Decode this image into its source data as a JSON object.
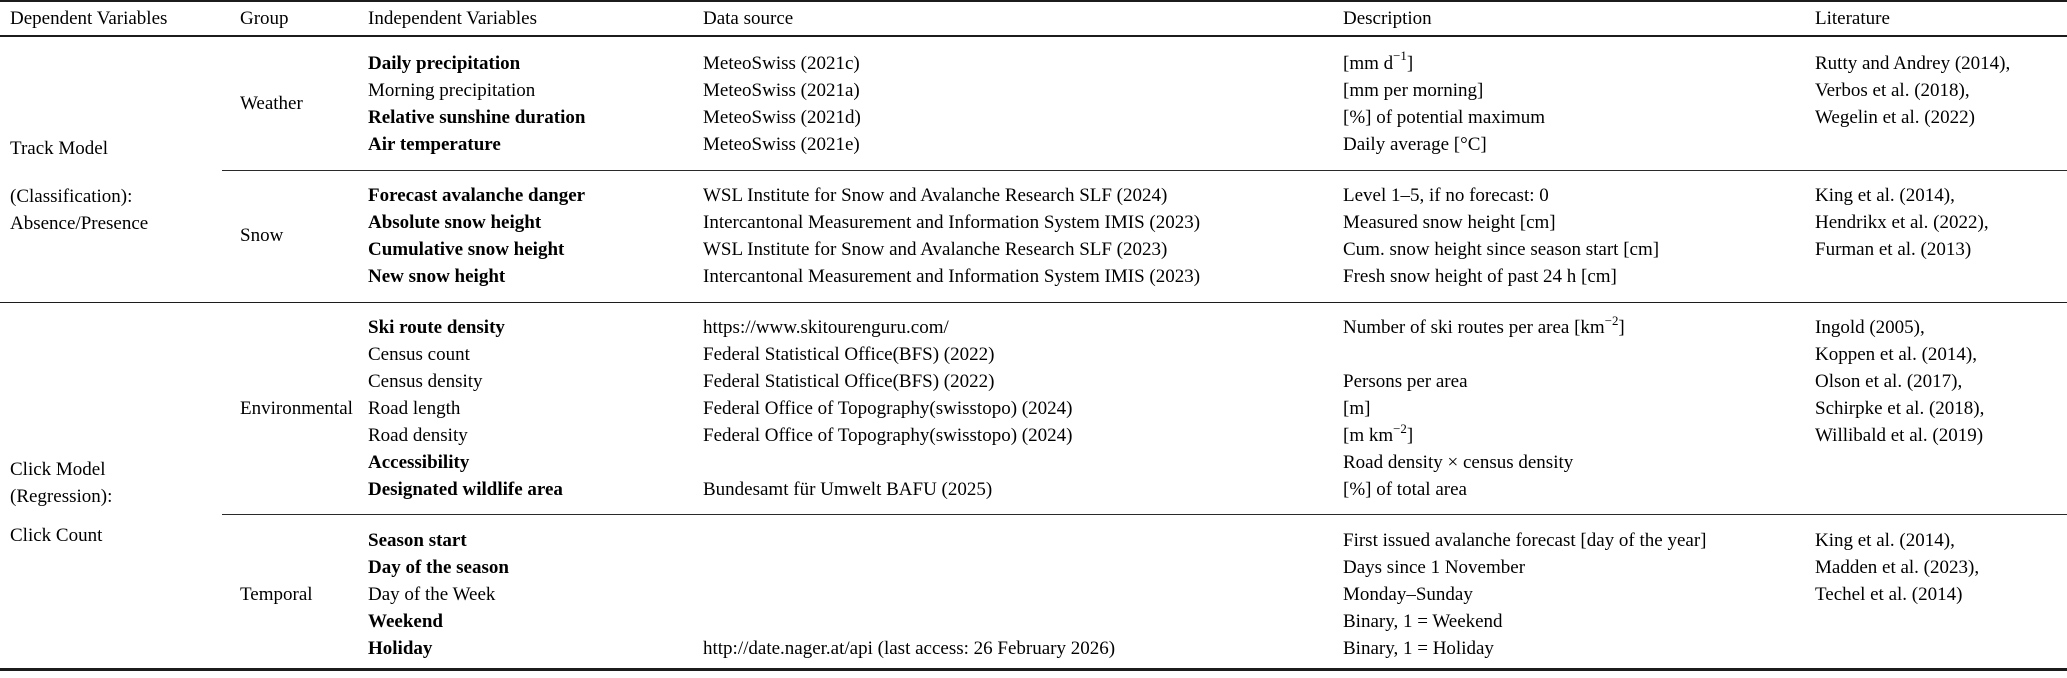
{
  "colors": {
    "text": "#000000",
    "background": "#ffffff",
    "rule": "#1c1c1c"
  },
  "table": {
    "columns": [
      "Dependent Variables",
      "Group",
      "Independent Variables",
      "Data source",
      "Description",
      "Literature"
    ],
    "sections": [
      {
        "model": [
          "Track Model",
          "(Classification):",
          "Absence/Presence"
        ],
        "groups": [
          {
            "name": "Weather",
            "rows": [
              {
                "variable": "Daily precipitation",
                "bold": true,
                "source": "MeteoSwiss (2021c)",
                "description": "[mm d^{−1}]"
              },
              {
                "variable": "Morning precipitation",
                "bold": false,
                "source": "MeteoSwiss (2021a)",
                "description": "[mm per morning]"
              },
              {
                "variable": "Relative sunshine duration",
                "bold": true,
                "source": "MeteoSwiss (2021d)",
                "description": "[%] of potential maximum"
              },
              {
                "variable": "Air temperature",
                "bold": true,
                "source": "MeteoSwiss (2021e)",
                "description": "Daily average [°C]"
              }
            ],
            "literature": [
              "Rutty and Andrey (2014),",
              "Verbos et al. (2018),",
              "Wegelin et al. (2022)"
            ]
          },
          {
            "name": "Snow",
            "rows": [
              {
                "variable": "Forecast avalanche danger",
                "bold": true,
                "source": "WSL Institute for Snow and Avalanche Research SLF (2024)",
                "description": "Level 1–5, if no forecast: 0"
              },
              {
                "variable": "Absolute snow height",
                "bold": true,
                "source": "Intercantonal Measurement and Information System IMIS (2023)",
                "description": "Measured snow height [cm]"
              },
              {
                "variable": "Cumulative snow height",
                "bold": true,
                "source": "WSL Institute for Snow and Avalanche Research SLF (2023)",
                "description": "Cum. snow height since season start [cm]"
              },
              {
                "variable": "New snow height",
                "bold": true,
                "source": "Intercantonal Measurement and Information System IMIS (2023)",
                "description": "Fresh snow height of past 24 h [cm]"
              }
            ],
            "literature": [
              "King et al. (2014),",
              "Hendrikx et al. (2022),",
              "Furman et al. (2013)"
            ]
          }
        ]
      },
      {
        "model": [
          "Click Model",
          "(Regression):",
          "Click Count"
        ],
        "groups": [
          {
            "name": "Environmental",
            "rows": [
              {
                "variable": "Ski route density",
                "bold": true,
                "source": "https://www.skitourenguru.com/",
                "description": "Number of ski routes per area [km^{−2}]"
              },
              {
                "variable": "Census count",
                "bold": false,
                "source": "Federal Statistical Office(BFS) (2022)",
                "description": ""
              },
              {
                "variable": "Census density",
                "bold": false,
                "source": "Federal Statistical Office(BFS) (2022)",
                "description": "Persons per area"
              },
              {
                "variable": "Road length",
                "bold": false,
                "source": "Federal Office of Topography(swisstopo) (2024)",
                "description": "[m]"
              },
              {
                "variable": "Road density",
                "bold": false,
                "source": "Federal Office of Topography(swisstopo) (2024)",
                "description": "[m km^{−2}]"
              },
              {
                "variable": "Accessibility",
                "bold": true,
                "source": "",
                "description": "Road density × census density"
              },
              {
                "variable": "Designated wildlife area",
                "bold": true,
                "source": "Bundesamt für Umwelt BAFU (2025)",
                "description": "[%] of total area"
              }
            ],
            "literature": [
              "Ingold (2005),",
              "Koppen et al. (2014),",
              "Olson et al. (2017),",
              "Schirpke et al. (2018),",
              "Willibald et al. (2019)"
            ]
          },
          {
            "name": "Temporal",
            "rows": [
              {
                "variable": "Season start",
                "bold": true,
                "source": "",
                "description": "First issued avalanche forecast [day of the year]"
              },
              {
                "variable": "Day of the season",
                "bold": true,
                "source": "",
                "description": "Days since 1 November"
              },
              {
                "variable": "Day of the Week",
                "bold": false,
                "source": "",
                "description": "Monday–Sunday"
              },
              {
                "variable": "Weekend",
                "bold": true,
                "source": "",
                "description": "Binary, 1 = Weekend"
              },
              {
                "variable": "Holiday",
                "bold": true,
                "source": "http://date.nager.at/api (last access: 26 February 2026)",
                "description": "Binary, 1 = Holiday"
              }
            ],
            "literature": [
              "King et al. (2014),",
              "Madden et al. (2023),",
              "Techel et al. (2014)"
            ]
          }
        ]
      }
    ]
  }
}
